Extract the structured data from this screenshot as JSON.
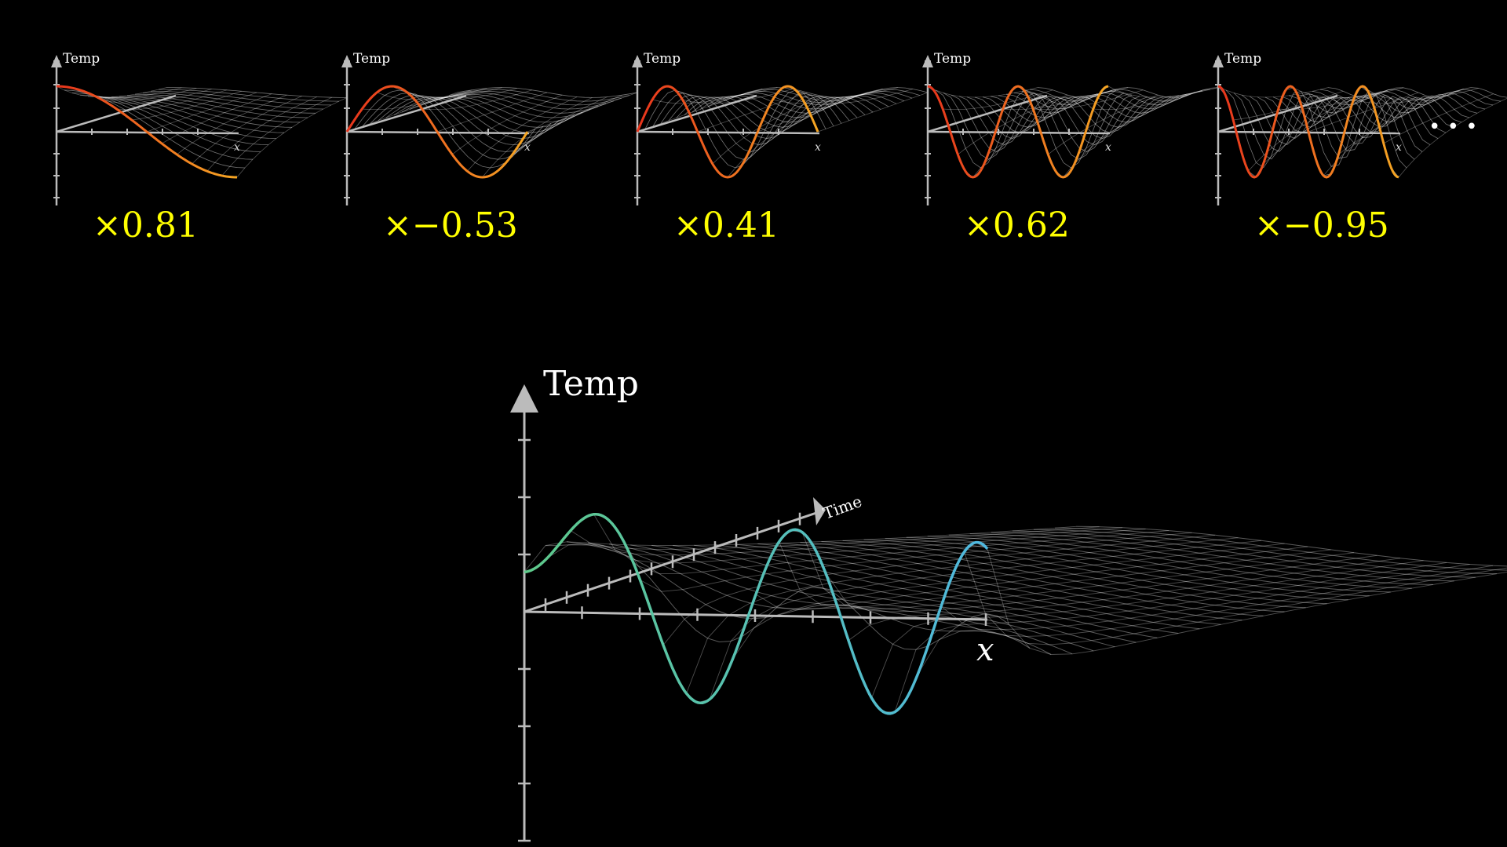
{
  "thumbnails": [
    {
      "axis_label": "Temp",
      "coefficient": "×0.81",
      "frequency": 1,
      "phase": "cos"
    },
    {
      "axis_label": "Temp",
      "coefficient": "×−0.53",
      "frequency": 2,
      "phase": "sin"
    },
    {
      "axis_label": "Temp",
      "coefficient": "×0.41",
      "frequency": 3,
      "phase": "sin"
    },
    {
      "axis_label": "Temp",
      "coefficient": "×0.62",
      "frequency": 4,
      "phase": "cos"
    },
    {
      "axis_label": "Temp",
      "coefficient": "×−0.95",
      "frequency": 5,
      "phase": "cos"
    }
  ],
  "ellipsis": "• • •",
  "main_plot": {
    "temp_label": "Temp",
    "x_label": "x",
    "time_label": "Time"
  },
  "colors": {
    "background": "#000000",
    "coefficient": "#ffff00",
    "thumb_curve_start": "#e8341c",
    "thumb_curve_end": "#f5a623",
    "main_curve_start": "#5ec98a",
    "main_curve_end": "#4fb8e0",
    "mesh": "#ffffff",
    "axis": "#bbbbbb"
  }
}
